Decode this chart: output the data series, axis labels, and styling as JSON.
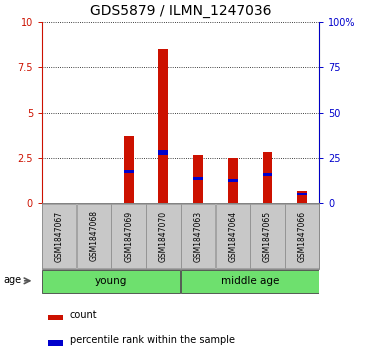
{
  "title": "GDS5879 / ILMN_1247036",
  "samples": [
    "GSM1847067",
    "GSM1847068",
    "GSM1847069",
    "GSM1847070",
    "GSM1847063",
    "GSM1847064",
    "GSM1847065",
    "GSM1847066"
  ],
  "red_values": [
    0.0,
    0.0,
    3.7,
    8.5,
    2.65,
    2.5,
    2.8,
    0.65
  ],
  "blue_values": [
    0.0,
    0.0,
    0.18,
    0.28,
    0.13,
    0.12,
    0.15,
    0.12
  ],
  "blue_positions": [
    0.0,
    0.0,
    1.65,
    2.65,
    1.3,
    1.2,
    1.5,
    0.45
  ],
  "groups": [
    {
      "label": "young",
      "start": 0,
      "end": 4,
      "color": "#6EE06E"
    },
    {
      "label": "middle age",
      "start": 4,
      "end": 8,
      "color": "#6EE06E"
    }
  ],
  "group_label": "age",
  "ylim": [
    0,
    10
  ],
  "yticks_left": [
    0,
    2.5,
    5,
    7.5,
    10
  ],
  "yticks_right": [
    0,
    25,
    50,
    75,
    100
  ],
  "bar_color_red": "#CC1100",
  "bar_color_blue": "#0000CC",
  "bar_bg_color": "#C8C8C8",
  "legend_red": "count",
  "legend_blue": "percentile rank within the sample",
  "title_fontsize": 10,
  "tick_fontsize": 7,
  "sample_fontsize": 5.5,
  "group_fontsize": 7.5,
  "legend_fontsize": 7
}
